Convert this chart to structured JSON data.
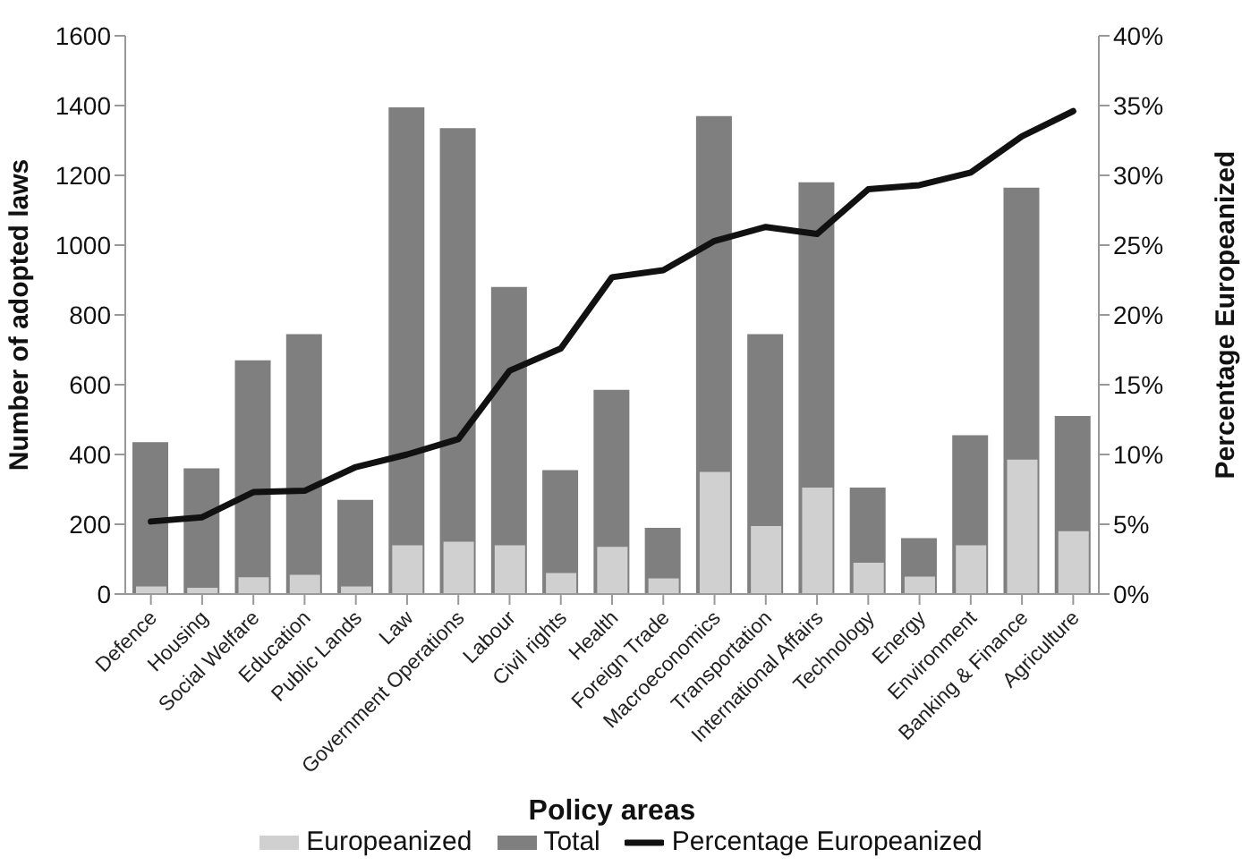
{
  "chart_data": {
    "type": "bar",
    "xlabel": "Policy areas",
    "ylabel": "Number of adopted laws",
    "y2label": "Percentage Europeanized",
    "categories": [
      "Defence",
      "Housing",
      "Social Welfare",
      "Education",
      "Public Lands",
      "Law",
      "Government Operations",
      "Labour",
      "Civil rights",
      "Health",
      "Foreign Trade",
      "Macroeconomics",
      "Transportation",
      "International Affairs",
      "Technology",
      "Energy",
      "Environment",
      "Banking & Finance",
      "Agriculture"
    ],
    "series": [
      {
        "name": "Europeanized",
        "color": "#d0d0d0",
        "values": [
          22,
          18,
          48,
          55,
          22,
          140,
          150,
          140,
          60,
          135,
          45,
          350,
          195,
          305,
          90,
          50,
          140,
          385,
          180
        ]
      },
      {
        "name": "Total",
        "color": "#7f7f7f",
        "values": [
          435,
          360,
          670,
          745,
          270,
          1395,
          1335,
          880,
          355,
          585,
          190,
          1370,
          745,
          1180,
          305,
          160,
          455,
          1165,
          510
        ]
      },
      {
        "name": "Percentage Europeanized",
        "type": "line",
        "axis": "y2",
        "color": "#111111",
        "values": [
          5.2,
          5.5,
          7.3,
          7.4,
          9.1,
          10,
          11.1,
          16,
          17.6,
          22.7,
          23.2,
          25.3,
          26.3,
          25.8,
          29,
          29.3,
          30.2,
          32.8,
          34.6
        ]
      }
    ],
    "ylim": [
      0,
      1600
    ],
    "yticks": [
      0,
      200,
      400,
      600,
      800,
      1000,
      1200,
      1400,
      1600
    ],
    "y2lim": [
      0,
      40
    ],
    "y2ticks": [
      {
        "value": 0,
        "label": "0%"
      },
      {
        "value": 5,
        "label": "5%"
      },
      {
        "value": 10,
        "label": "10%"
      },
      {
        "value": 15,
        "label": "15%"
      },
      {
        "value": 20,
        "label": "20%"
      },
      {
        "value": 25,
        "label": "25%"
      },
      {
        "value": 30,
        "label": "30%"
      },
      {
        "value": 35,
        "label": "35%"
      },
      {
        "value": 40,
        "label": "40%"
      }
    ],
    "grid": false,
    "legend": "bottom",
    "marker": "none",
    "line_style": "solid"
  }
}
